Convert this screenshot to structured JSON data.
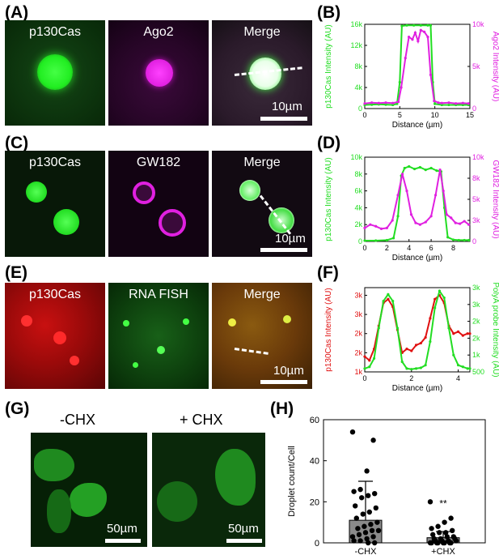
{
  "panels": {
    "A": {
      "letter": "(A)",
      "labels": [
        "p130Cas",
        "Ago2",
        "Merge"
      ],
      "scale": "10µm"
    },
    "B": {
      "letter": "(B)"
    },
    "C": {
      "letter": "(C)",
      "labels": [
        "p130Cas",
        "GW182",
        "Merge"
      ],
      "scale": "10µm"
    },
    "D": {
      "letter": "(D)"
    },
    "E": {
      "letter": "(E)",
      "labels": [
        "p130Cas",
        "RNA FISH",
        "Merge"
      ],
      "scale": "10µm"
    },
    "F": {
      "letter": "(F)"
    },
    "G": {
      "letter": "(G)",
      "labels": [
        "-CHX",
        "+ CHX"
      ],
      "scale": "50µm"
    },
    "H": {
      "letter": "(H)"
    }
  },
  "colors": {
    "green": "#22dd22",
    "magenta": "#e020e0",
    "red": "#e01010"
  },
  "chart_data": [
    {
      "panel": "B",
      "type": "line",
      "xlabel": "Distance (µm)",
      "ylabel": "p130Cas Intensity (AU)",
      "ylabel2": "Ago2 Intensity (AU)",
      "xlim": [
        0,
        15
      ],
      "ylim": [
        0,
        16000
      ],
      "ylim2": [
        0,
        10000
      ],
      "xticks": [
        0,
        5,
        10,
        15
      ],
      "yticks": [
        0,
        4000,
        8000,
        12000,
        16000
      ],
      "yticks2": [
        0,
        5000,
        10000
      ],
      "xticklabels": [
        "0",
        "5",
        "10",
        "15"
      ],
      "yticklabels": [
        "0",
        "4k",
        "8k",
        "12k",
        "16k"
      ],
      "yticklabels2": [
        "0",
        "5k",
        "10k"
      ],
      "series": [
        {
          "axis": "left",
          "color": "green",
          "x": [
            0,
            1,
            2,
            3,
            4,
            4.6,
            5.0,
            5.3,
            6,
            7,
            8,
            9,
            9.4,
            9.7,
            10,
            11,
            12,
            13,
            14,
            14.8
          ],
          "y": [
            700,
            750,
            800,
            750,
            700,
            900,
            5000,
            15700,
            15800,
            15800,
            15800,
            15800,
            15800,
            5000,
            900,
            700,
            700,
            700,
            700,
            700
          ]
        },
        {
          "axis": "right",
          "color": "magenta",
          "x": [
            0,
            1,
            2,
            3,
            4,
            4.8,
            5.2,
            5.8,
            6.3,
            6.8,
            7.2,
            7.6,
            8.0,
            8.5,
            9.0,
            9.4,
            9.9,
            10.5,
            11,
            12,
            13,
            14,
            14.8
          ],
          "y": [
            600,
            700,
            650,
            700,
            650,
            800,
            2500,
            6000,
            8500,
            8200,
            9000,
            8000,
            9300,
            9100,
            8500,
            4000,
            900,
            700,
            650,
            700,
            600,
            650,
            600
          ]
        }
      ]
    },
    {
      "panel": "D",
      "type": "line",
      "xlabel": "Distance (µm)",
      "ylabel": "p130Cas Intensity (AU)",
      "ylabel2": "GW182 Intensity (AU)",
      "xlim": [
        0,
        9.5
      ],
      "ylim": [
        0,
        10000
      ],
      "ylim2": [
        0,
        10000
      ],
      "xticks": [
        0,
        2,
        4,
        6,
        8
      ],
      "yticks": [
        0,
        2000,
        4000,
        6000,
        8000,
        10000
      ],
      "yticks2": [
        0,
        2500,
        5000,
        7500,
        10000
      ],
      "xticklabels": [
        "0",
        "2",
        "4",
        "6",
        "8"
      ],
      "yticklabels": [
        "0",
        "2k",
        "4k",
        "6k",
        "8k",
        "10k"
      ],
      "yticklabels2": [
        "0",
        "3k",
        "5k",
        "8k",
        "10k"
      ],
      "series": [
        {
          "axis": "left",
          "color": "green",
          "x": [
            0,
            1,
            2,
            2.6,
            3.0,
            3.3,
            3.6,
            4.0,
            4.5,
            5,
            5.5,
            6,
            6.5,
            6.9,
            7.2,
            7.5,
            8,
            8.5,
            9,
            9.4
          ],
          "y": [
            100,
            100,
            150,
            400,
            3000,
            7800,
            8700,
            8900,
            8600,
            8800,
            8500,
            8700,
            8400,
            8300,
            4000,
            500,
            200,
            150,
            150,
            150
          ]
        },
        {
          "axis": "right",
          "color": "magenta",
          "x": [
            0,
            0.5,
            1,
            1.5,
            2,
            2.5,
            3.0,
            3.4,
            3.8,
            4.2,
            4.6,
            5.0,
            5.5,
            6.0,
            6.4,
            6.8,
            7.1,
            7.4,
            7.8,
            8.2,
            8.6,
            9.0,
            9.4
          ],
          "y": [
            1600,
            2000,
            1800,
            1500,
            1600,
            2500,
            5500,
            8000,
            6000,
            3200,
            2200,
            2000,
            2300,
            3000,
            5500,
            8500,
            6000,
            3200,
            2800,
            2200,
            2100,
            2400,
            2000
          ]
        }
      ]
    },
    {
      "panel": "F",
      "type": "line",
      "xlabel": "Distance (µm)",
      "ylabel": "p130Cas Intensity (AU)",
      "ylabel2": "PolyA probe Intensity (AU)",
      "xlim": [
        0,
        4.5
      ],
      "ylim": [
        1000,
        3200
      ],
      "ylim2": [
        500,
        3000
      ],
      "xticks": [
        0,
        2,
        4
      ],
      "yticks": [
        1000,
        1500,
        2000,
        2500,
        3000
      ],
      "yticks2": [
        500,
        1000,
        1500,
        2000,
        2500,
        3000
      ],
      "xticklabels": [
        "0",
        "2",
        "4"
      ],
      "yticklabels": [
        "1k",
        "2k",
        "2k",
        "3k",
        "3k"
      ],
      "yticklabels2": [
        "500",
        "1k",
        "2k",
        "2k",
        "3k",
        "3k"
      ],
      "series": [
        {
          "axis": "left",
          "color": "red",
          "x": [
            0,
            0.2,
            0.4,
            0.6,
            0.8,
            1.0,
            1.2,
            1.4,
            1.6,
            1.8,
            2.0,
            2.2,
            2.4,
            2.6,
            2.8,
            3.0,
            3.2,
            3.4,
            3.6,
            3.8,
            4.0,
            4.2,
            4.4,
            4.5
          ],
          "y": [
            1400,
            1300,
            1600,
            2200,
            2800,
            2900,
            2700,
            2100,
            1500,
            1600,
            1550,
            1700,
            1750,
            1900,
            2400,
            2900,
            3000,
            2800,
            2200,
            2000,
            2050,
            1950,
            2000,
            2000
          ]
        },
        {
          "axis": "right",
          "color": "green",
          "x": [
            0,
            0.2,
            0.4,
            0.6,
            0.8,
            1.0,
            1.2,
            1.4,
            1.6,
            1.8,
            2.0,
            2.2,
            2.4,
            2.6,
            2.8,
            3.0,
            3.2,
            3.4,
            3.6,
            3.8,
            4.0,
            4.2,
            4.4,
            4.5
          ],
          "y": [
            600,
            650,
            900,
            1800,
            2600,
            2800,
            2600,
            1800,
            800,
            600,
            580,
            600,
            620,
            700,
            1400,
            2400,
            2900,
            2700,
            1800,
            1000,
            700,
            650,
            600,
            600
          ]
        }
      ]
    },
    {
      "panel": "H",
      "type": "bar",
      "ylabel": "Droplet count/Cell",
      "categories": [
        "-CHX",
        "+CHX"
      ],
      "values": [
        11,
        2.5
      ],
      "errors": [
        19,
        3
      ],
      "ylim": [
        0,
        60
      ],
      "yticks": [
        0,
        20,
        40,
        60
      ],
      "yticklabels": [
        "0",
        "20",
        "40",
        "60"
      ],
      "annotation": "**",
      "points": [
        [
          54,
          50,
          35,
          26,
          25,
          24,
          23,
          22,
          18,
          17,
          15,
          14,
          12,
          10,
          9,
          8,
          7,
          6,
          6,
          5,
          4,
          3,
          3,
          2,
          1,
          1,
          0,
          0
        ],
        [
          20,
          12,
          10,
          8,
          7,
          6,
          5,
          5,
          4,
          3,
          3,
          2,
          2,
          2,
          1,
          1,
          1,
          1,
          0,
          0,
          0,
          0,
          0,
          0,
          0,
          0
        ]
      ]
    }
  ]
}
